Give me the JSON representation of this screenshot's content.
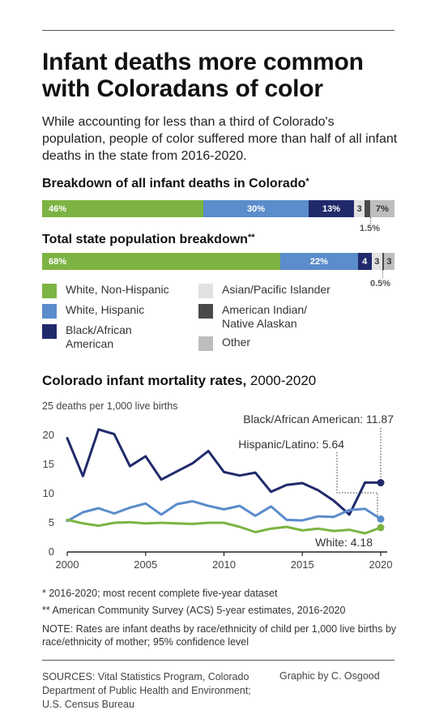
{
  "header": {
    "title": "Infant deaths more common with Coloradans of color",
    "subtitle": "While accounting for less than a third of Colorado's population, people of color suffered more than half of all infant deaths in the state from 2016-2020."
  },
  "deaths_section": {
    "heading": "Breakdown of all infant deaths in Colorado",
    "note": "*"
  },
  "population_section": {
    "heading": "Total state population breakdown",
    "note": "**"
  },
  "colors": {
    "white_non_hispanic": "#7cb342",
    "white_hispanic": "#5b8ccb",
    "black": "#202a6b",
    "asian_pi": "#e2e2e2",
    "american_indian": "#4a4a4a",
    "other": "#bdbdbd"
  },
  "legend": [
    {
      "key": "white_non_hispanic",
      "label": "White, Non-Hispanic"
    },
    {
      "key": "white_hispanic",
      "label": "White, Hispanic"
    },
    {
      "key": "black",
      "label": "Black/African American"
    },
    {
      "key": "asian_pi",
      "label": "Asian/Pacific Islander"
    },
    {
      "key": "american_indian",
      "label": "American Indian/ Native Alaskan"
    },
    {
      "key": "other",
      "label": "Other"
    }
  ],
  "line_chart": {
    "title_bold": "Colorado infant mortality rates,",
    "title_rest": " 2000-2020",
    "unit_label": "25 deaths per 1,000 live births",
    "footnote1": "* 2016-2020; most recent complete five-year dataset",
    "footnote2": "** American Community Survey (ACS) 5-year estimates, 2016-2020",
    "note": "NOTE: Rates are infant deaths by race/ethnicity of child per 1,000 live births by race/ethnicity of mother; 95% confidence level"
  },
  "footer": {
    "sources": "SOURCES: Vital Statistics Program, Colorado Department of Public Health and Environment; U.S. Census Bureau",
    "credit": "Graphic by C. Osgood"
  },
  "chart_data": [
    {
      "type": "bar",
      "stacked": true,
      "title": "Breakdown of all infant deaths in Colorado",
      "categories": [
        "White, Non-Hispanic",
        "White, Hispanic",
        "Black/African American",
        "Asian/Pacific Islander",
        "American Indian/ Native Alaskan",
        "Other"
      ],
      "values": [
        46,
        30,
        13,
        3,
        1.5,
        7
      ],
      "labels": [
        "46%",
        "30%",
        "13%",
        "3",
        "1.5%",
        "7%"
      ],
      "unit": "%"
    },
    {
      "type": "bar",
      "stacked": true,
      "title": "Total state population breakdown",
      "categories": [
        "White, Non-Hispanic",
        "White, Hispanic",
        "Black/African American",
        "Asian/Pacific Islander",
        "American Indian/ Native Alaskan",
        "Other"
      ],
      "values": [
        68,
        22,
        4,
        3,
        0.5,
        3
      ],
      "labels": [
        "68%",
        "22%",
        "4",
        "3",
        "0.5%",
        "3"
      ],
      "unit": "%"
    },
    {
      "type": "line",
      "title": "Colorado infant mortality rates, 2000-2020",
      "ylabel": "25 deaths per 1,000 live births",
      "xlim": [
        2000,
        2020
      ],
      "ylim": [
        0,
        25
      ],
      "xticks": [
        2000,
        2005,
        2010,
        2015,
        2020
      ],
      "yticks": [
        0,
        5,
        10,
        15,
        20
      ],
      "grid": false,
      "x": [
        2000,
        2001,
        2002,
        2003,
        2004,
        2005,
        2006,
        2007,
        2008,
        2009,
        2010,
        2011,
        2012,
        2013,
        2014,
        2015,
        2016,
        2017,
        2018,
        2019,
        2020
      ],
      "series": [
        {
          "name": "Black/African American",
          "color": "#202a6b",
          "values": [
            19.5,
            13,
            21,
            20.2,
            14.7,
            16.4,
            12.4,
            13.8,
            15.2,
            17.3,
            13.7,
            13.1,
            13.6,
            10.3,
            11.5,
            11.8,
            10.6,
            8.8,
            6.4,
            11.9,
            11.87
          ],
          "end_label": "Black/African American: 11.87"
        },
        {
          "name": "Hispanic/Latino",
          "color": "#5b8ccb",
          "values": [
            5.3,
            6.8,
            7.5,
            6.6,
            7.6,
            8.3,
            6.4,
            8.2,
            8.7,
            7.9,
            7.3,
            7.9,
            6.2,
            7.8,
            5.5,
            5.4,
            6.1,
            6.0,
            7.2,
            7.4,
            5.64
          ],
          "end_label": "Hispanic/Latino: 5.64"
        },
        {
          "name": "White",
          "color": "#7cb342",
          "values": [
            5.5,
            4.9,
            4.5,
            5.0,
            5.1,
            4.9,
            5.0,
            4.9,
            4.8,
            5.0,
            5.0,
            4.3,
            3.4,
            4.0,
            4.3,
            3.7,
            4.0,
            3.6,
            3.8,
            3.2,
            4.18
          ],
          "end_label": "White: 4.18"
        }
      ]
    }
  ]
}
